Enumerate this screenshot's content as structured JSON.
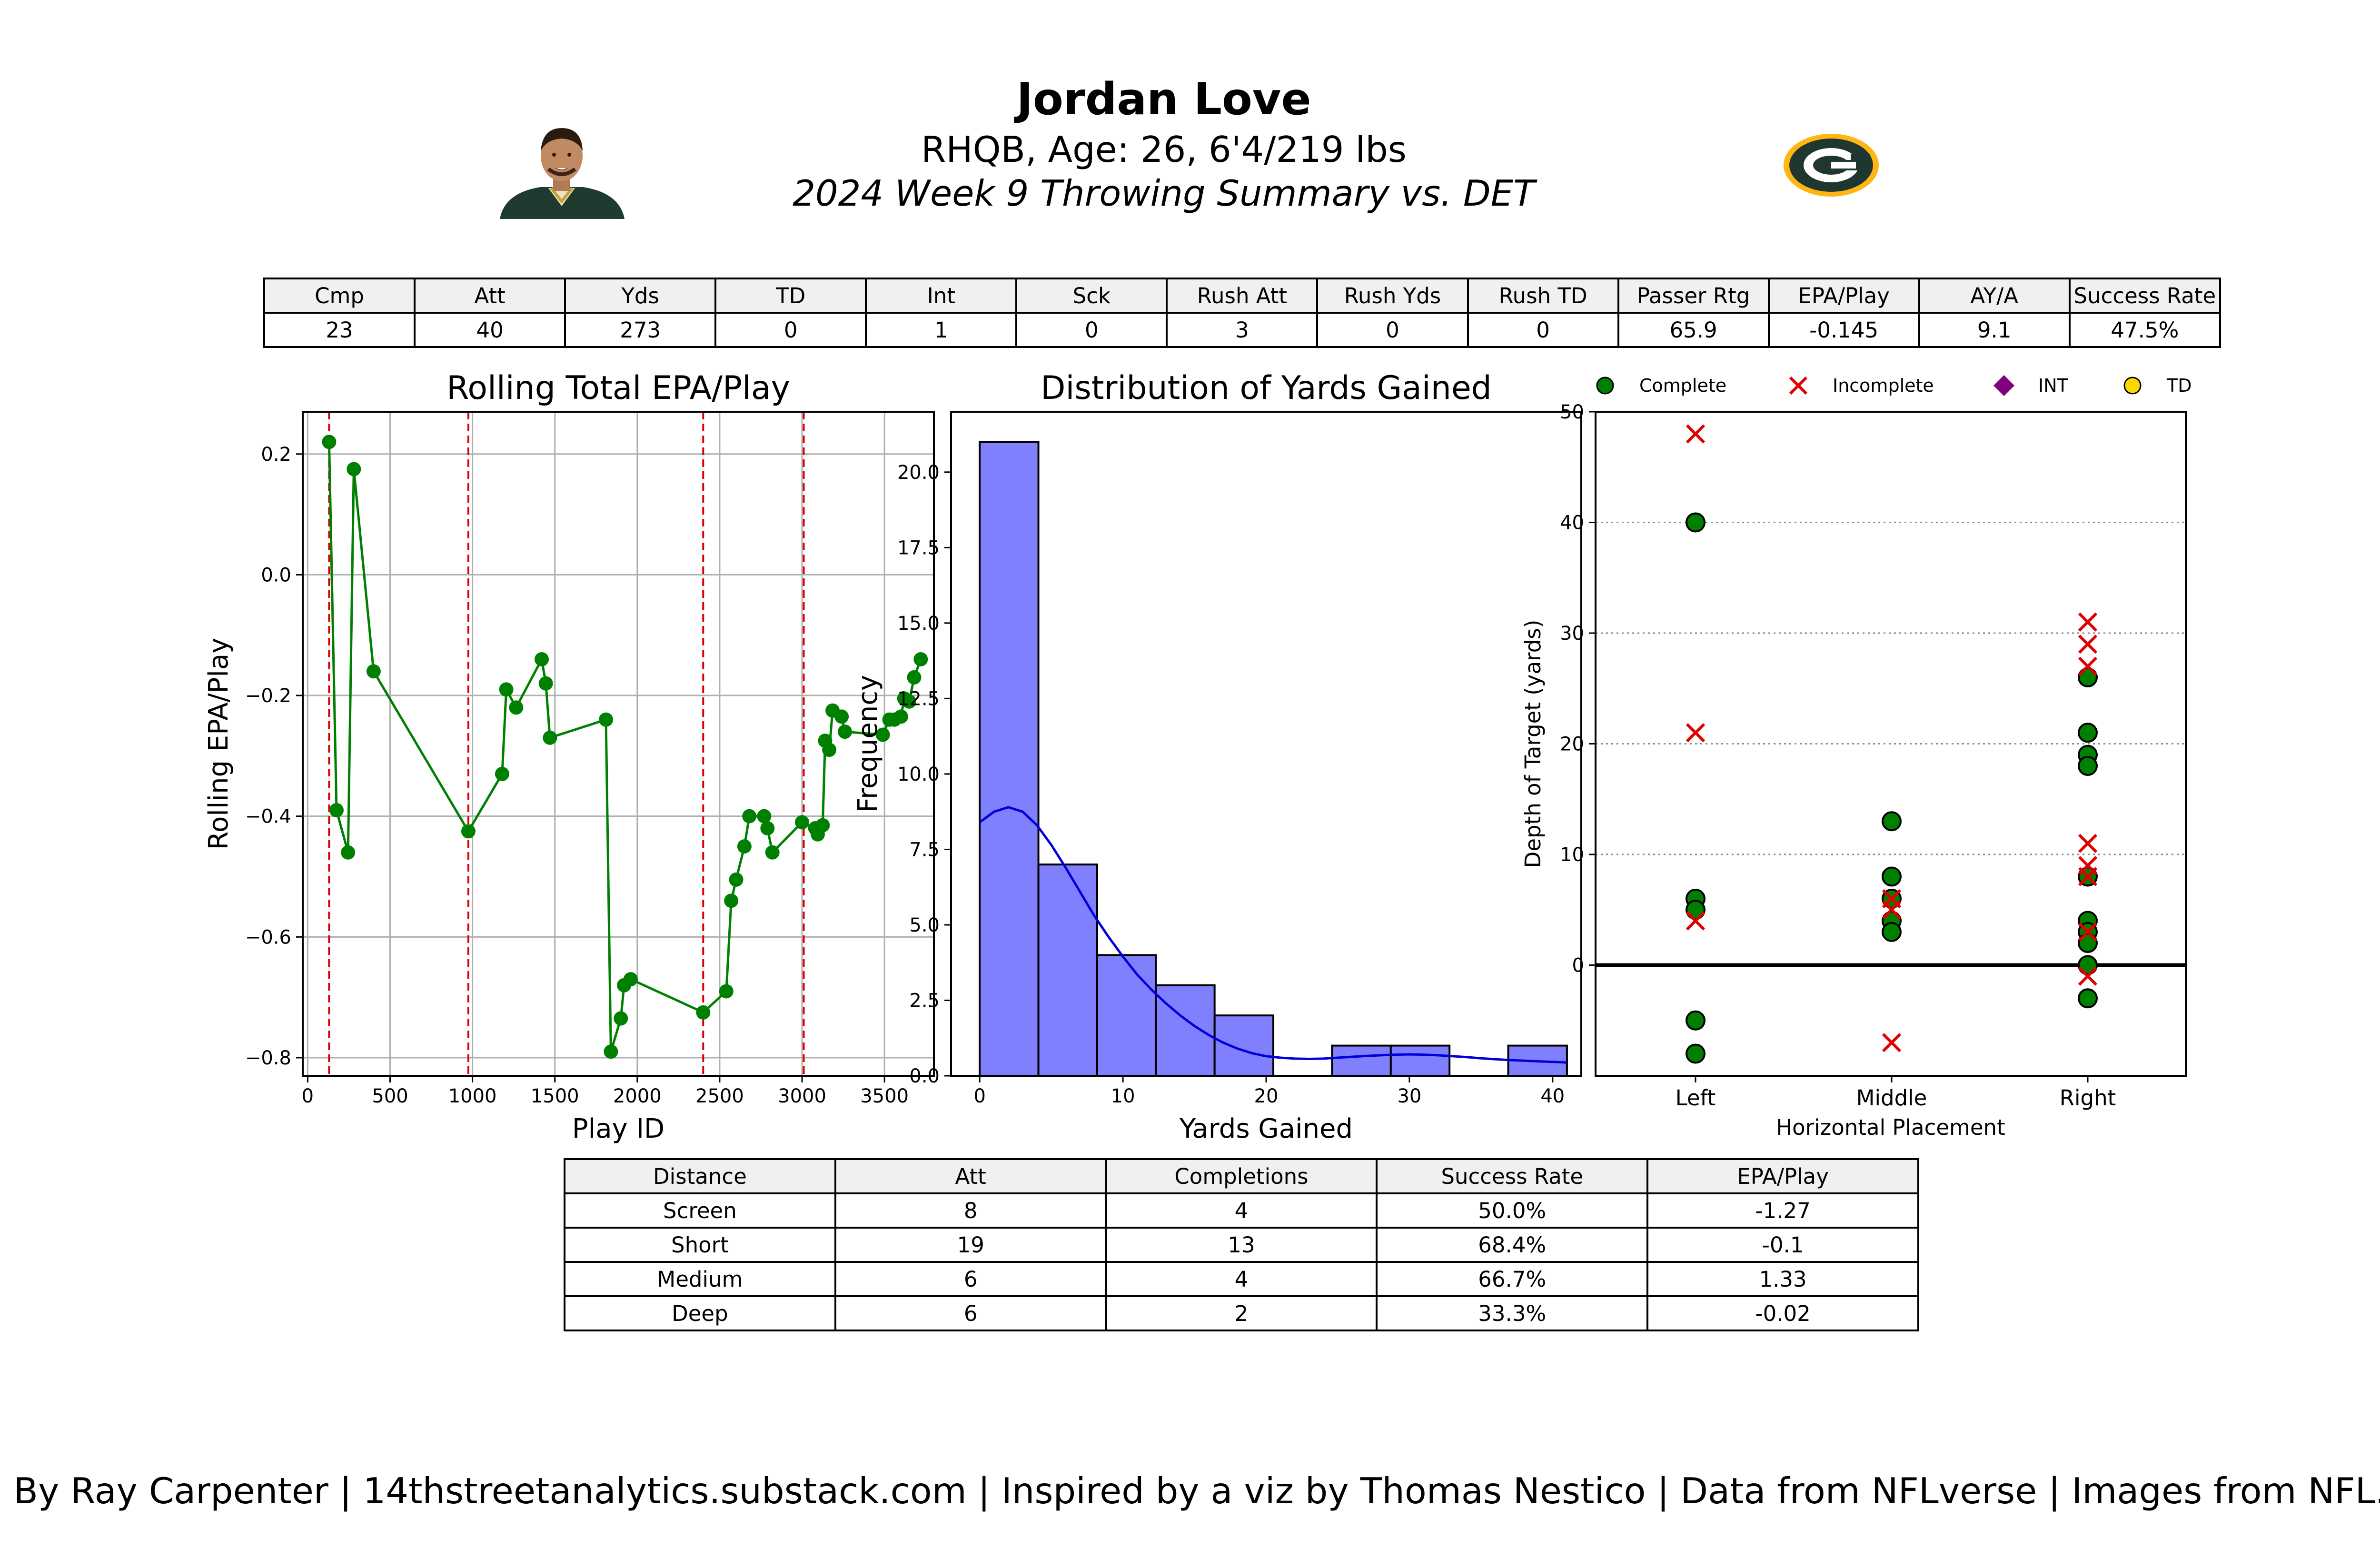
{
  "header": {
    "name": "Jordan Love",
    "bio": "RHQB, Age: 26, 6'4/219 lbs",
    "subtitle": "2024 Week 9 Throwing Summary vs. DET"
  },
  "colors": {
    "complete": "#008000",
    "incomplete": "#e00000",
    "int": "#800080",
    "td": "#ffd700",
    "hist_fill": "#8080ff",
    "kde": "#0000dd",
    "quarter_line": "#dd0000",
    "team_green": "#203731",
    "team_gold": "#ffb612"
  },
  "icons": {
    "player_photo": "player-headshot-icon",
    "team_logo": "packers-g-logo-icon"
  },
  "summary_table": {
    "headers": [
      "Cmp",
      "Att",
      "Yds",
      "TD",
      "Int",
      "Sck",
      "Rush Att",
      "Rush Yds",
      "Rush TD",
      "Passer Rtg",
      "EPA/Play",
      "AY/A",
      "Success Rate"
    ],
    "row": [
      "23",
      "40",
      "273",
      "0",
      "1",
      "0",
      "3",
      "0",
      "0",
      "65.9",
      "-0.145",
      "9.1",
      "47.5%"
    ]
  },
  "distance_table": {
    "headers": [
      "Distance",
      "Att",
      "Completions",
      "Success Rate",
      "EPA/Play"
    ],
    "rows": [
      [
        "Screen",
        "8",
        "4",
        "50.0%",
        "-1.27"
      ],
      [
        "Short",
        "19",
        "13",
        "68.4%",
        "-0.1"
      ],
      [
        "Medium",
        "6",
        "4",
        "66.7%",
        "1.33"
      ],
      [
        "Deep",
        "6",
        "2",
        "33.3%",
        "-0.02"
      ]
    ]
  },
  "chart_data": [
    {
      "type": "line",
      "title": "Rolling Total EPA/Play",
      "xlabel": "Play ID",
      "ylabel": "Rolling EPA/Play",
      "xlim": [
        -30,
        3800
      ],
      "ylim": [
        -0.83,
        0.27
      ],
      "xticks": [
        0,
        500,
        1000,
        1500,
        2000,
        2500,
        3000,
        3500
      ],
      "xtick_labels": [
        "0",
        "500",
        "1000",
        "1500",
        "2000",
        "2500",
        "3000",
        "3500"
      ],
      "yticks": [
        -0.8,
        -0.6,
        -0.4,
        -0.2,
        0.0,
        0.2
      ],
      "ytick_labels": [
        "−0.8",
        "−0.6",
        "−0.4",
        "−0.2",
        "0.0",
        "0.2"
      ],
      "grid": true,
      "quarter_lines_x": [
        130,
        975,
        2400,
        3010
      ],
      "points": [
        [
          130,
          0.22
        ],
        [
          175,
          -0.39
        ],
        [
          245,
          -0.46
        ],
        [
          280,
          0.175
        ],
        [
          400,
          -0.16
        ],
        [
          975,
          -0.425
        ],
        [
          1180,
          -0.33
        ],
        [
          1205,
          -0.19
        ],
        [
          1265,
          -0.22
        ],
        [
          1420,
          -0.14
        ],
        [
          1445,
          -0.18
        ],
        [
          1470,
          -0.27
        ],
        [
          1810,
          -0.24
        ],
        [
          1840,
          -0.79
        ],
        [
          1900,
          -0.735
        ],
        [
          1920,
          -0.68
        ],
        [
          1960,
          -0.67
        ],
        [
          2400,
          -0.725
        ],
        [
          2540,
          -0.69
        ],
        [
          2570,
          -0.54
        ],
        [
          2600,
          -0.505
        ],
        [
          2650,
          -0.45
        ],
        [
          2680,
          -0.4
        ],
        [
          2770,
          -0.4
        ],
        [
          2790,
          -0.42
        ],
        [
          2820,
          -0.46
        ],
        [
          3000,
          -0.41
        ],
        [
          3080,
          -0.42
        ],
        [
          3095,
          -0.43
        ],
        [
          3125,
          -0.415
        ],
        [
          3140,
          -0.275
        ],
        [
          3165,
          -0.29
        ],
        [
          3185,
          -0.225
        ],
        [
          3240,
          -0.235
        ],
        [
          3260,
          -0.26
        ],
        [
          3490,
          -0.265
        ],
        [
          3530,
          -0.24
        ],
        [
          3560,
          -0.24
        ],
        [
          3600,
          -0.235
        ],
        [
          3620,
          -0.205
        ],
        [
          3650,
          -0.21
        ],
        [
          3680,
          -0.17
        ],
        [
          3720,
          -0.14
        ]
      ]
    },
    {
      "type": "bar",
      "title": "Distribution of Yards Gained",
      "xlabel": "Yards Gained",
      "ylabel": "Frequency",
      "xlim": [
        -2,
        42
      ],
      "ylim": [
        0,
        22
      ],
      "xticks": [
        0,
        10,
        20,
        30,
        40
      ],
      "xtick_labels": [
        "0",
        "10",
        "20",
        "30",
        "40"
      ],
      "yticks": [
        0,
        2.5,
        5,
        7.5,
        10,
        12.5,
        15,
        17.5,
        20
      ],
      "ytick_labels": [
        "0.0",
        "2.5",
        "5.0",
        "7.5",
        "10.0",
        "12.5",
        "15.0",
        "17.5",
        "20.0"
      ],
      "bin_edges": [
        0,
        4.1,
        8.2,
        12.3,
        16.4,
        20.5,
        24.6,
        28.7,
        32.8,
        36.9,
        41
      ],
      "values": [
        21,
        7,
        4,
        3,
        2,
        0,
        1,
        1,
        0,
        1
      ],
      "kde": [
        [
          0,
          8.4
        ],
        [
          1,
          8.75
        ],
        [
          2,
          8.9
        ],
        [
          3,
          8.75
        ],
        [
          4,
          8.3
        ],
        [
          5,
          7.65
        ],
        [
          6,
          6.9
        ],
        [
          7,
          6.1
        ],
        [
          8,
          5.3
        ],
        [
          9,
          4.6
        ],
        [
          10,
          3.95
        ],
        [
          11,
          3.35
        ],
        [
          12,
          2.85
        ],
        [
          13,
          2.4
        ],
        [
          14,
          2.0
        ],
        [
          15,
          1.65
        ],
        [
          16,
          1.35
        ],
        [
          17,
          1.1
        ],
        [
          18,
          0.9
        ],
        [
          19,
          0.75
        ],
        [
          20,
          0.65
        ],
        [
          21,
          0.6
        ],
        [
          22,
          0.57
        ],
        [
          23,
          0.56
        ],
        [
          24,
          0.57
        ],
        [
          25,
          0.6
        ],
        [
          26,
          0.63
        ],
        [
          27,
          0.66
        ],
        [
          28,
          0.68
        ],
        [
          29,
          0.7
        ],
        [
          30,
          0.71
        ],
        [
          31,
          0.7
        ],
        [
          32,
          0.68
        ],
        [
          33,
          0.65
        ],
        [
          34,
          0.62
        ],
        [
          35,
          0.58
        ],
        [
          36,
          0.55
        ],
        [
          37,
          0.52
        ],
        [
          38,
          0.5
        ],
        [
          39,
          0.48
        ],
        [
          40,
          0.46
        ],
        [
          41,
          0.44
        ]
      ]
    },
    {
      "type": "scatter",
      "xlabel": "Horizontal Placement",
      "ylabel": "Depth of Target (yards)",
      "categories": [
        "Left",
        "Middle",
        "Right"
      ],
      "ylim": [
        -10,
        50
      ],
      "yticks": [
        0,
        10,
        20,
        30,
        40,
        50
      ],
      "ytick_labels": [
        "0",
        "10",
        "20",
        "30",
        "40",
        "50"
      ],
      "legend": [
        "Complete",
        "Incomplete",
        "INT",
        "TD"
      ],
      "legend_position": "top",
      "series": [
        {
          "name": "Complete",
          "marker": "circle",
          "points": [
            [
              "Left",
              40
            ],
            [
              "Left",
              6
            ],
            [
              "Left",
              5
            ],
            [
              "Left",
              -5
            ],
            [
              "Left",
              -8
            ],
            [
              "Middle",
              13
            ],
            [
              "Middle",
              8
            ],
            [
              "Middle",
              6
            ],
            [
              "Middle",
              4
            ],
            [
              "Middle",
              3
            ],
            [
              "Right",
              26
            ],
            [
              "Right",
              21
            ],
            [
              "Right",
              19
            ],
            [
              "Right",
              18
            ],
            [
              "Right",
              8
            ],
            [
              "Right",
              4
            ],
            [
              "Right",
              3
            ],
            [
              "Right",
              2
            ],
            [
              "Right",
              0
            ],
            [
              "Right",
              -3
            ]
          ]
        },
        {
          "name": "Incomplete",
          "marker": "x",
          "points": [
            [
              "Left",
              48
            ],
            [
              "Left",
              21
            ],
            [
              "Left",
              4
            ],
            [
              "Middle",
              6
            ],
            [
              "Middle",
              5
            ],
            [
              "Middle",
              -7
            ],
            [
              "Right",
              31
            ],
            [
              "Right",
              29
            ],
            [
              "Right",
              27
            ],
            [
              "Right",
              11
            ],
            [
              "Right",
              9
            ],
            [
              "Right",
              8
            ],
            [
              "Right",
              3
            ],
            [
              "Right",
              -1
            ]
          ]
        },
        {
          "name": "INT",
          "marker": "diamond",
          "points": []
        },
        {
          "name": "TD",
          "marker": "circle",
          "points": []
        }
      ]
    }
  ],
  "footer": {
    "credit": "By Ray Carpenter | 14thstreetanalytics.substack.com | Inspired by a viz by Thomas Nestico | Data from NFLverse | Images from NFL.com"
  }
}
